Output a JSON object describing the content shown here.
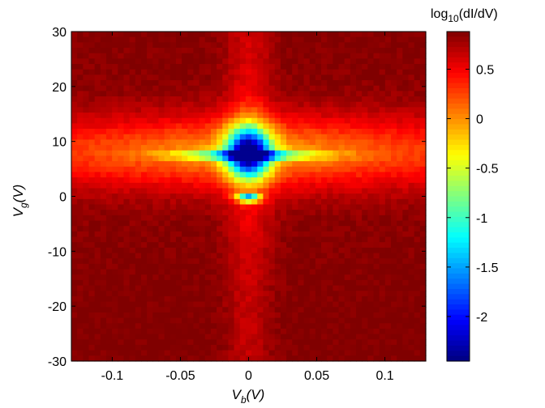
{
  "chart_data": {
    "type": "heatmap",
    "title": "",
    "x_axis": {
      "label_main": "V",
      "label_sub": "b",
      "label_unit": "(V)",
      "range": [
        -0.13,
        0.13
      ],
      "ticks": [
        -0.1,
        -0.05,
        0,
        0.05,
        0.1
      ],
      "tick_labels": [
        "-0.1",
        "-0.05",
        "0",
        "0.05",
        "0.1"
      ]
    },
    "y_axis": {
      "label_main": "V",
      "label_sub": "g",
      "label_unit": "(V)",
      "range": [
        -30,
        30
      ],
      "ticks": [
        30,
        20,
        10,
        0,
        -10,
        -20,
        -30
      ],
      "tick_labels": [
        "30",
        "20",
        "10",
        "0",
        "-10",
        "-20",
        "-30"
      ]
    },
    "colorbar": {
      "title_main": "log",
      "title_sub": "10",
      "title_rest": "(dI/dV)",
      "range": [
        -2.45,
        0.88
      ],
      "ticks": [
        0.5,
        0,
        -0.5,
        -1,
        -1.5,
        -2
      ],
      "tick_labels": [
        "0.5",
        "0",
        "-0.5",
        "-1",
        "-1.5",
        "-2"
      ],
      "colormap": "jet"
    },
    "grid": false,
    "z_model": {
      "description": "log10(dI/dV) vs bias Vb and gate Vg; conductance minimum near Vb=0, Vg≈8 V",
      "background": 0.82,
      "min_value": -2.4,
      "center_vb": 0,
      "center_vg": 8
    }
  }
}
